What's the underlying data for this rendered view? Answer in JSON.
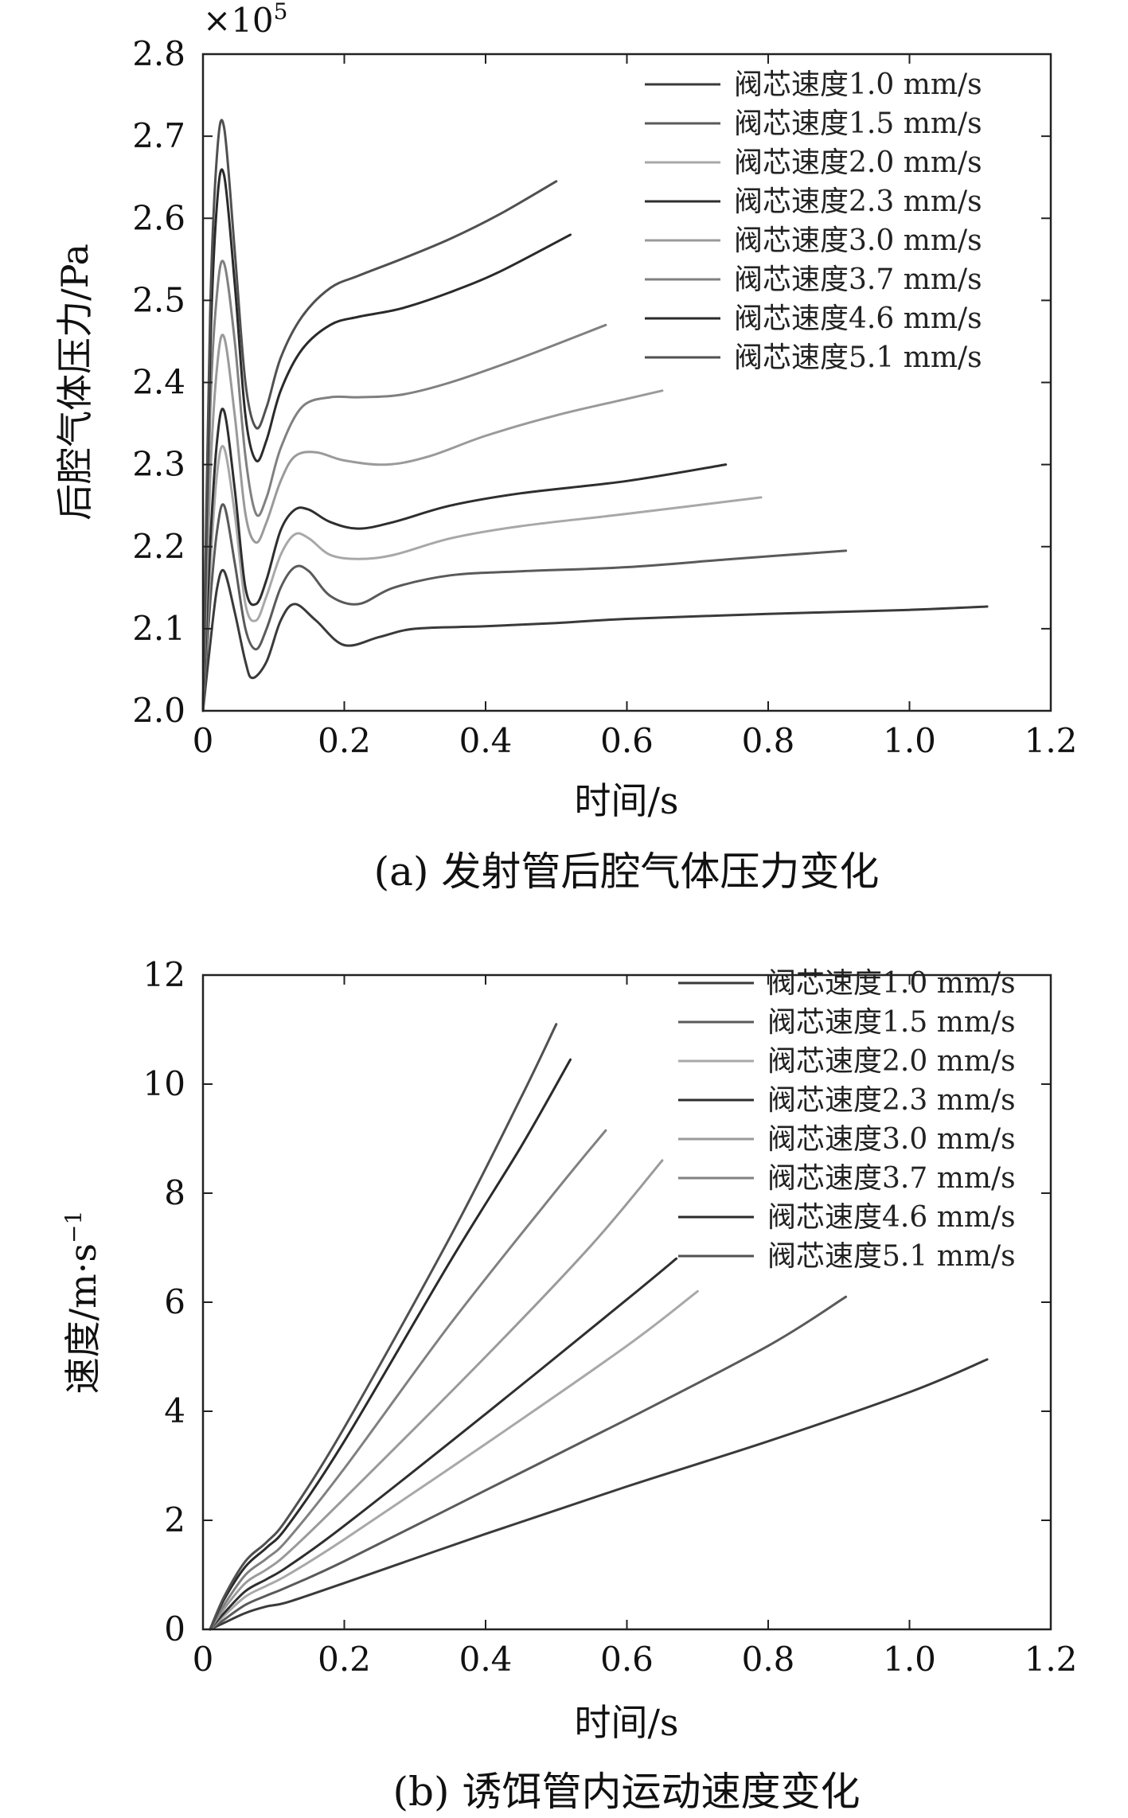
{
  "legend": [
    {
      "label": "阀芯速度1.0 mm/s",
      "color": "#3a3a3a"
    },
    {
      "label": "阀芯速度1.5 mm/s",
      "color": "#5a5a5a"
    },
    {
      "label": "阀芯速度2.0 mm/s",
      "color": "#a8a8a8"
    },
    {
      "label": "阀芯速度2.3 mm/s",
      "color": "#2e2e2e"
    },
    {
      "label": "阀芯速度3.0 mm/s",
      "color": "#9a9a9a"
    },
    {
      "label": "阀芯速度3.7 mm/s",
      "color": "#808080"
    },
    {
      "label": "阀芯速度4.6 mm/s",
      "color": "#2a2a2a"
    },
    {
      "label": "阀芯速度5.1 mm/s",
      "color": "#505050"
    }
  ],
  "chart_data": [
    {
      "type": "line",
      "title": "",
      "caption": "(a) 发射管后腔气体压力变化",
      "xlabel": "时间/s",
      "ylabel": "后腔气体压力/Pa",
      "y_multiplier": "×10",
      "y_multiplier_exp": "5",
      "xlim": [
        0,
        1.2
      ],
      "ylim": [
        2.0,
        2.8
      ],
      "xticks": [
        "0",
        "0.2",
        "0.4",
        "0.6",
        "0.8",
        "1.0",
        "1.2"
      ],
      "yticks": [
        "2.0",
        "2.1",
        "2.2",
        "2.3",
        "2.4",
        "2.5",
        "2.6",
        "2.7",
        "2.8"
      ],
      "series": [
        {
          "name": "阀芯速度1.0 mm/s",
          "x": [
            0,
            0.01,
            0.02,
            0.03,
            0.045,
            0.06,
            0.07,
            0.09,
            0.11,
            0.13,
            0.16,
            0.2,
            0.25,
            0.3,
            0.4,
            0.5,
            0.6,
            0.8,
            1.0,
            1.11
          ],
          "y": [
            2.0,
            2.08,
            2.15,
            2.17,
            2.12,
            2.06,
            2.04,
            2.06,
            2.11,
            2.13,
            2.11,
            2.08,
            2.09,
            2.1,
            2.103,
            2.107,
            2.112,
            2.118,
            2.123,
            2.127
          ]
        },
        {
          "name": "阀芯速度1.5 mm/s",
          "x": [
            0,
            0.01,
            0.02,
            0.03,
            0.045,
            0.06,
            0.075,
            0.09,
            0.11,
            0.13,
            0.15,
            0.18,
            0.22,
            0.27,
            0.35,
            0.45,
            0.6,
            0.75,
            0.91
          ],
          "y": [
            2.0,
            2.13,
            2.22,
            2.25,
            2.18,
            2.1,
            2.075,
            2.1,
            2.15,
            2.175,
            2.17,
            2.14,
            2.13,
            2.15,
            2.165,
            2.17,
            2.175,
            2.185,
            2.195
          ]
        },
        {
          "name": "阀芯速度2.0 mm/s",
          "x": [
            0,
            0.01,
            0.02,
            0.03,
            0.045,
            0.06,
            0.075,
            0.09,
            0.11,
            0.13,
            0.15,
            0.18,
            0.22,
            0.27,
            0.35,
            0.45,
            0.6,
            0.79
          ],
          "y": [
            2.0,
            2.17,
            2.29,
            2.32,
            2.24,
            2.13,
            2.11,
            2.14,
            2.19,
            2.215,
            2.21,
            2.19,
            2.185,
            2.19,
            2.21,
            2.225,
            2.24,
            2.26
          ]
        },
        {
          "name": "阀芯速度2.3 mm/s",
          "x": [
            0,
            0.01,
            0.02,
            0.03,
            0.045,
            0.06,
            0.075,
            0.09,
            0.11,
            0.13,
            0.15,
            0.18,
            0.22,
            0.27,
            0.35,
            0.45,
            0.6,
            0.74
          ],
          "y": [
            2.0,
            2.2,
            2.33,
            2.365,
            2.27,
            2.15,
            2.13,
            2.16,
            2.22,
            2.245,
            2.245,
            2.23,
            2.222,
            2.23,
            2.25,
            2.265,
            2.28,
            2.3
          ]
        },
        {
          "name": "阀芯速度3.0 mm/s",
          "x": [
            0,
            0.01,
            0.02,
            0.03,
            0.045,
            0.06,
            0.075,
            0.09,
            0.11,
            0.13,
            0.16,
            0.2,
            0.26,
            0.32,
            0.4,
            0.5,
            0.6,
            0.65
          ],
          "y": [
            2.0,
            2.28,
            2.42,
            2.455,
            2.36,
            2.24,
            2.205,
            2.23,
            2.28,
            2.31,
            2.315,
            2.305,
            2.3,
            2.31,
            2.335,
            2.36,
            2.38,
            2.39
          ]
        },
        {
          "name": "阀芯速度3.7 mm/s",
          "x": [
            0,
            0.01,
            0.02,
            0.03,
            0.045,
            0.06,
            0.075,
            0.09,
            0.11,
            0.14,
            0.18,
            0.22,
            0.28,
            0.35,
            0.45,
            0.57
          ],
          "y": [
            2.0,
            2.36,
            2.51,
            2.545,
            2.45,
            2.31,
            2.24,
            2.26,
            2.32,
            2.37,
            2.382,
            2.382,
            2.385,
            2.4,
            2.43,
            2.47
          ]
        },
        {
          "name": "阀芯速度4.6 mm/s",
          "x": [
            0,
            0.01,
            0.02,
            0.03,
            0.045,
            0.06,
            0.075,
            0.09,
            0.11,
            0.14,
            0.18,
            0.22,
            0.28,
            0.35,
            0.42,
            0.52
          ],
          "y": [
            2.0,
            2.43,
            2.62,
            2.652,
            2.52,
            2.36,
            2.305,
            2.33,
            2.39,
            2.44,
            2.47,
            2.48,
            2.49,
            2.51,
            2.535,
            2.58
          ]
        },
        {
          "name": "阀芯速度5.1 mm/s",
          "x": [
            0,
            0.01,
            0.02,
            0.03,
            0.045,
            0.06,
            0.075,
            0.09,
            0.11,
            0.14,
            0.18,
            0.22,
            0.28,
            0.35,
            0.42,
            0.5
          ],
          "y": [
            2.0,
            2.48,
            2.68,
            2.71,
            2.56,
            2.4,
            2.345,
            2.37,
            2.43,
            2.48,
            2.515,
            2.53,
            2.55,
            2.575,
            2.605,
            2.645
          ]
        }
      ]
    },
    {
      "type": "line",
      "title": "",
      "caption": "(b) 诱饵管内运动速度变化",
      "xlabel": "时间/s",
      "ylabel": "速度/m·s",
      "ylabel_exp": "−1",
      "xlim": [
        0,
        1.2
      ],
      "ylim": [
        0,
        12
      ],
      "xticks": [
        "0",
        "0.2",
        "0.4",
        "0.6",
        "0.8",
        "1.0",
        "1.2"
      ],
      "yticks": [
        "0",
        "2",
        "4",
        "6",
        "8",
        "10",
        "12"
      ],
      "series": [
        {
          "name": "阀芯速度1.0 mm/s",
          "x": [
            0.01,
            0.03,
            0.06,
            0.09,
            0.12,
            0.2,
            0.4,
            0.6,
            0.8,
            1.0,
            1.11
          ],
          "y": [
            0,
            0.12,
            0.3,
            0.42,
            0.5,
            0.85,
            1.75,
            2.62,
            3.45,
            4.35,
            4.95
          ]
        },
        {
          "name": "阀芯速度1.5 mm/s",
          "x": [
            0.01,
            0.03,
            0.06,
            0.09,
            0.12,
            0.2,
            0.4,
            0.6,
            0.8,
            0.91
          ],
          "y": [
            0,
            0.18,
            0.45,
            0.62,
            0.78,
            1.25,
            2.55,
            3.85,
            5.2,
            6.1
          ]
        },
        {
          "name": "阀芯速度2.0 mm/s",
          "x": [
            0.01,
            0.03,
            0.06,
            0.09,
            0.12,
            0.2,
            0.4,
            0.6,
            0.7
          ],
          "y": [
            0,
            0.25,
            0.6,
            0.8,
            1.0,
            1.65,
            3.4,
            5.2,
            6.2
          ]
        },
        {
          "name": "阀芯速度2.3 mm/s",
          "x": [
            0.01,
            0.03,
            0.06,
            0.09,
            0.12,
            0.2,
            0.4,
            0.6,
            0.67
          ],
          "y": [
            0,
            0.3,
            0.7,
            0.92,
            1.15,
            1.9,
            3.95,
            6.05,
            6.8
          ]
        },
        {
          "name": "阀芯速度3.0 mm/s",
          "x": [
            0.01,
            0.03,
            0.06,
            0.09,
            0.12,
            0.2,
            0.4,
            0.55,
            0.65
          ],
          "y": [
            0,
            0.38,
            0.85,
            1.1,
            1.4,
            2.4,
            5.0,
            7.05,
            8.6
          ]
        },
        {
          "name": "阀芯速度3.7 mm/s",
          "x": [
            0.01,
            0.03,
            0.06,
            0.09,
            0.12,
            0.2,
            0.35,
            0.5,
            0.57
          ],
          "y": [
            0,
            0.45,
            1.0,
            1.3,
            1.65,
            2.95,
            5.6,
            8.05,
            9.15
          ]
        },
        {
          "name": "阀芯速度4.6 mm/s",
          "x": [
            0.01,
            0.03,
            0.06,
            0.09,
            0.12,
            0.2,
            0.35,
            0.45,
            0.52
          ],
          "y": [
            0,
            0.55,
            1.15,
            1.5,
            1.9,
            3.45,
            6.75,
            8.85,
            10.45
          ]
        },
        {
          "name": "阀芯速度5.1 mm/s",
          "x": [
            0.01,
            0.03,
            0.06,
            0.09,
            0.12,
            0.2,
            0.35,
            0.45,
            0.5
          ],
          "y": [
            0,
            0.6,
            1.25,
            1.6,
            2.05,
            3.7,
            7.2,
            9.75,
            11.1
          ]
        }
      ]
    }
  ]
}
